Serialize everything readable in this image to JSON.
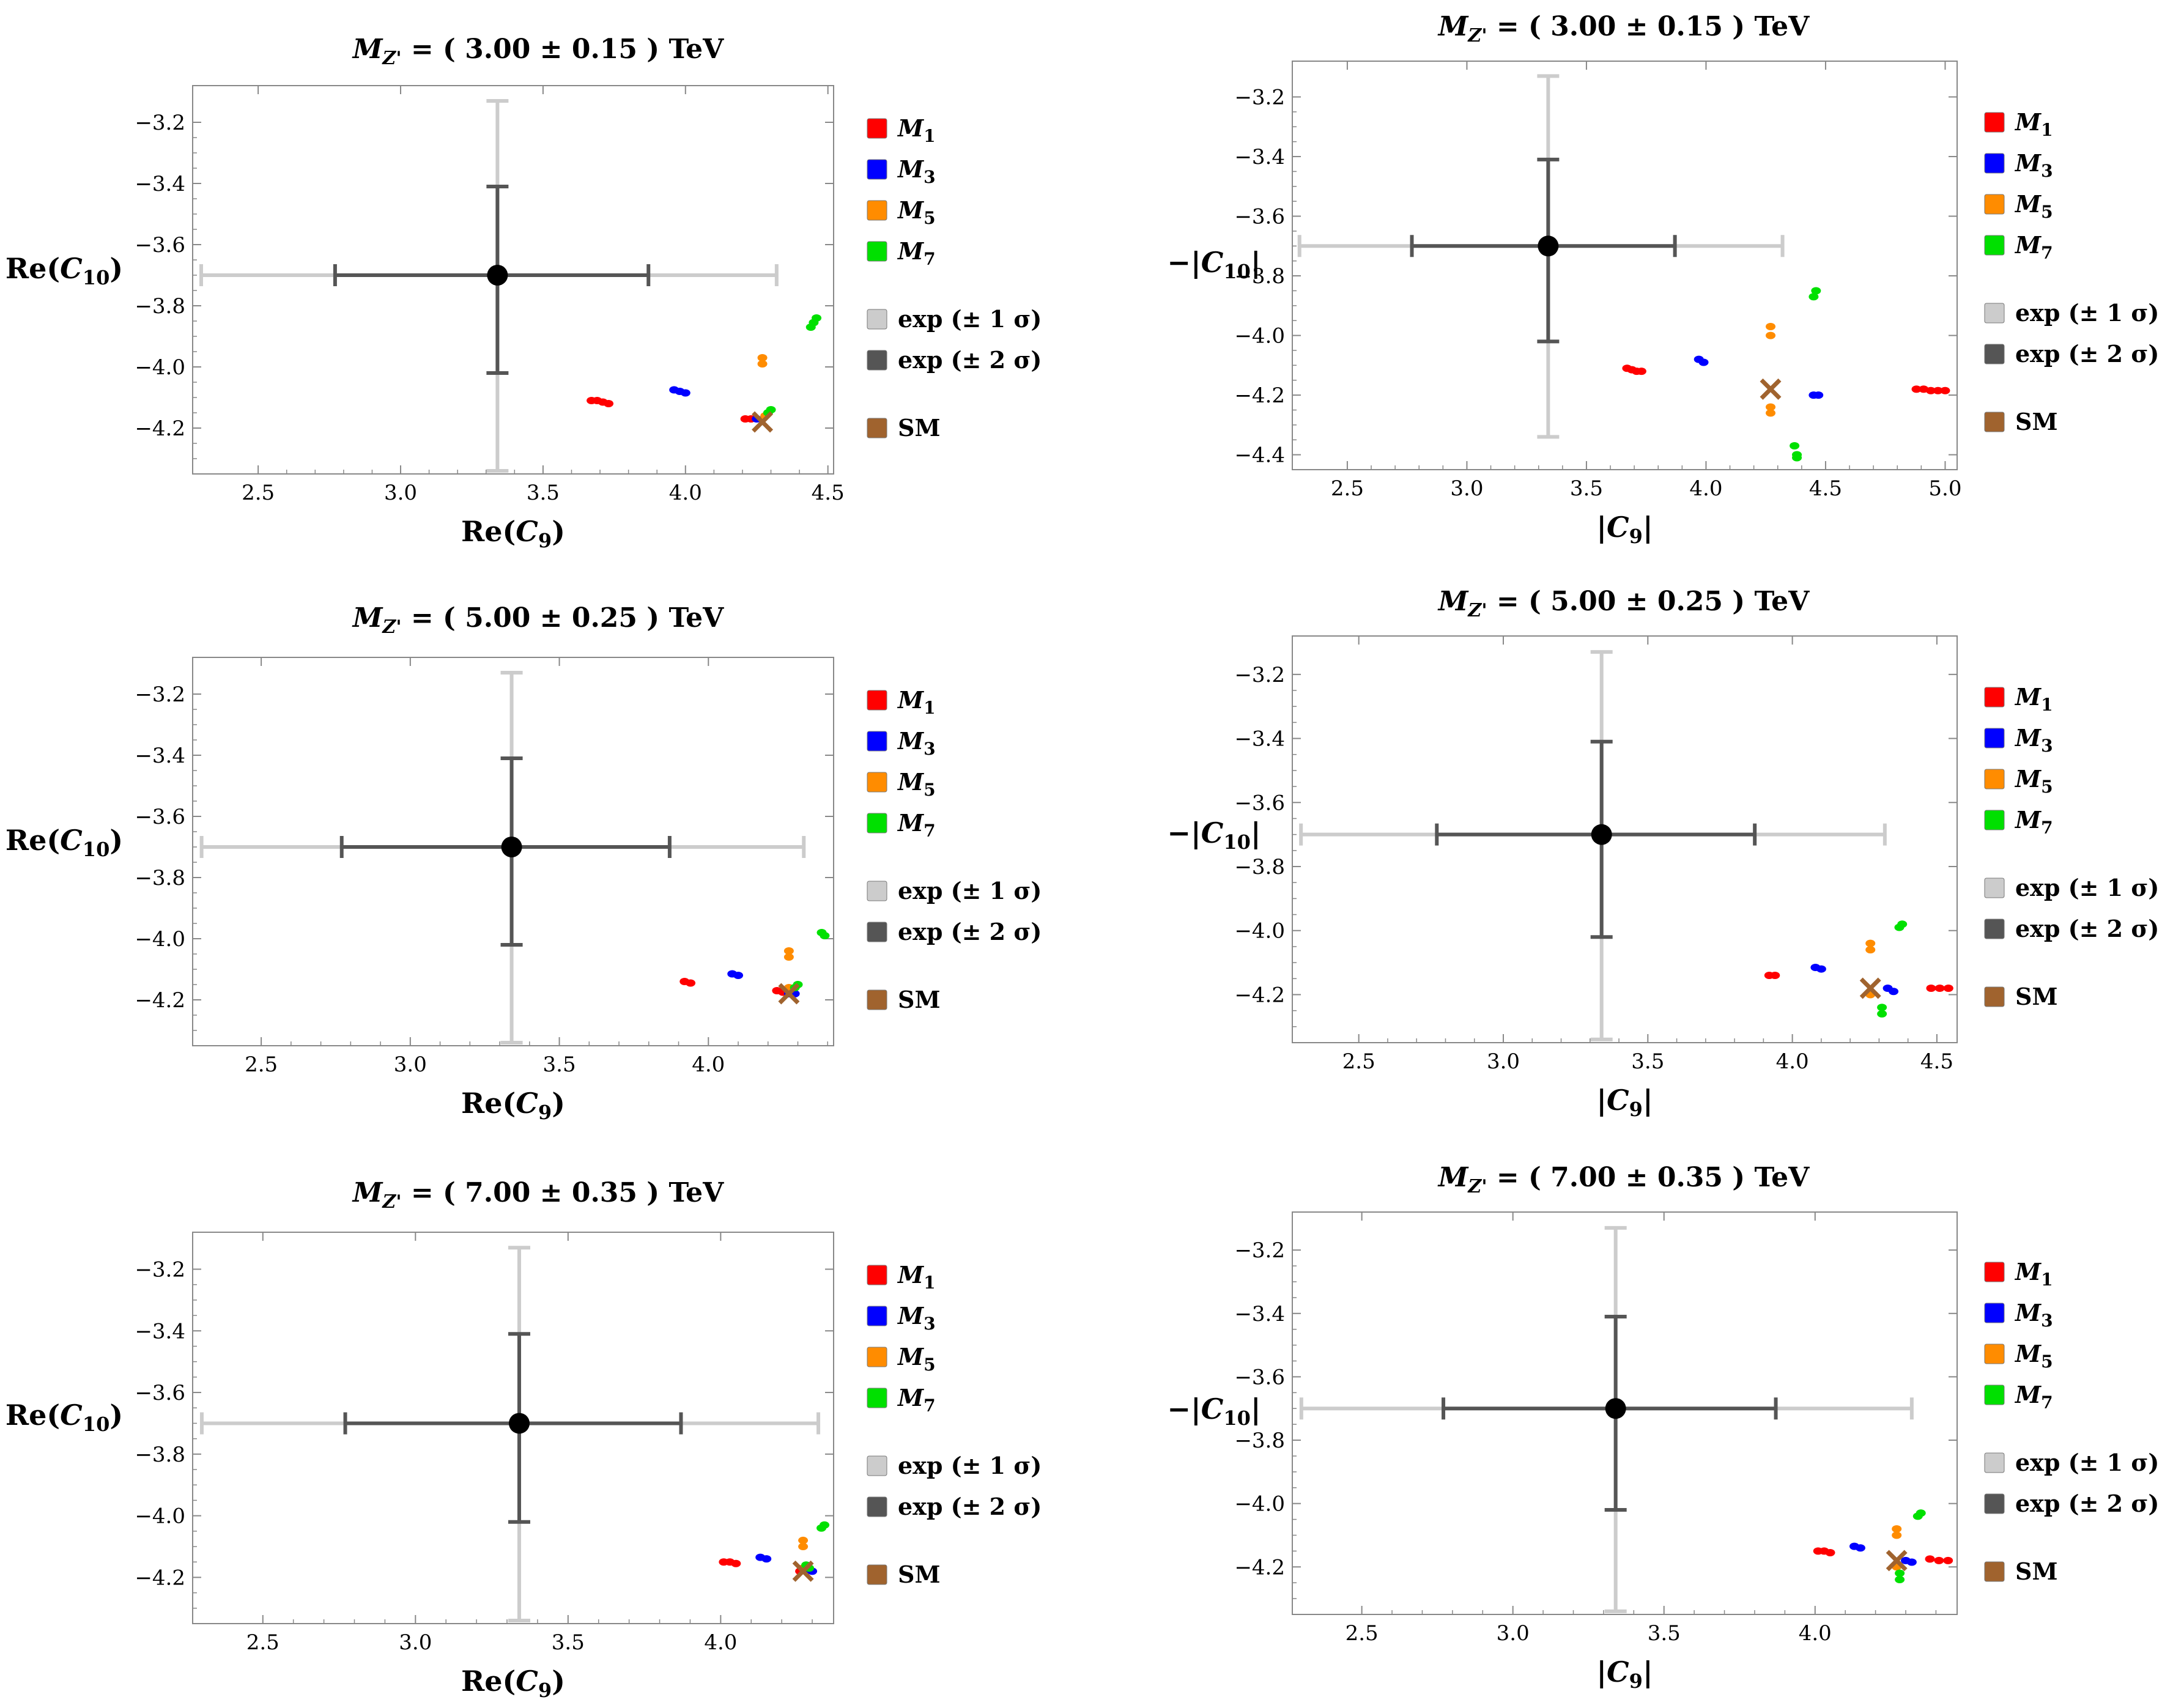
{
  "colors": {
    "M1": "#ff0000",
    "M3": "#0000ff",
    "M5": "#ff8c00",
    "M7": "#00e000",
    "exp1": "#cccccc",
    "exp2": "#555555",
    "SM": "#a0632e",
    "frame": "#888888",
    "bestfit": "#000000"
  },
  "legend": [
    {
      "key": "M1",
      "label": "M",
      "sub": "1",
      "italic": true
    },
    {
      "key": "M3",
      "label": "M",
      "sub": "3",
      "italic": true
    },
    {
      "key": "M5",
      "label": "M",
      "sub": "5",
      "italic": true
    },
    {
      "key": "M7",
      "label": "M",
      "sub": "7",
      "italic": true
    },
    {
      "key": "exp1",
      "label": "exp (± 1 σ)",
      "sub": "",
      "italic": false
    },
    {
      "key": "exp2",
      "label": "exp (± 2 σ)",
      "sub": "",
      "italic": false
    },
    {
      "key": "SM",
      "label": "SM",
      "sub": "",
      "italic": false
    }
  ],
  "chart_data": [
    {
      "type": "scatter",
      "title": "M_Z' = ( 3.00 ± 0.15 ) TeV",
      "title_mass": "( 3.00 ± 0.15 ) TeV",
      "xlabel": "Re(C9)",
      "ylabel": "Re(C10)",
      "xlim": [
        2.27,
        4.52
      ],
      "ylim": [
        -4.35,
        -3.08
      ],
      "xticks": [
        "2.5",
        "3.0",
        "3.5",
        "4.0",
        "4.5"
      ],
      "yticks": [
        "-3.2",
        "-3.4",
        "-3.6",
        "-3.8",
        "-4.0",
        "-4.2"
      ],
      "exp": {
        "center": [
          3.34,
          -3.7
        ],
        "x1": [
          2.3,
          4.32
        ],
        "x2": [
          2.77,
          3.87
        ],
        "y1": [
          -4.34,
          -3.13
        ],
        "y2": [
          -4.02,
          -3.41
        ]
      },
      "sm": [
        4.27,
        -4.18
      ],
      "series": [
        {
          "name": "M1",
          "points": [
            [
              3.67,
              -4.11
            ],
            [
              3.69,
              -4.11
            ],
            [
              3.71,
              -4.115
            ],
            [
              3.73,
              -4.12
            ],
            [
              4.21,
              -4.17
            ],
            [
              4.23,
              -4.17
            ]
          ]
        },
        {
          "name": "M3",
          "points": [
            [
              3.96,
              -4.075
            ],
            [
              3.98,
              -4.08
            ],
            [
              4.0,
              -4.085
            ],
            [
              4.25,
              -4.17
            ]
          ]
        },
        {
          "name": "M5",
          "points": [
            [
              4.27,
              -3.97
            ],
            [
              4.27,
              -3.99
            ],
            [
              4.28,
              -4.16
            ]
          ]
        },
        {
          "name": "M7",
          "points": [
            [
              4.44,
              -3.87
            ],
            [
              4.45,
              -3.855
            ],
            [
              4.46,
              -3.84
            ],
            [
              4.29,
              -4.15
            ],
            [
              4.3,
              -4.14
            ]
          ]
        }
      ]
    },
    {
      "type": "scatter",
      "title": "M_Z' = ( 3.00 ± 0.15 ) TeV",
      "title_mass": "( 3.00 ± 0.15 ) TeV",
      "xlabel": "|C9|",
      "ylabel": "−|C10|",
      "xlim": [
        2.27,
        5.05
      ],
      "ylim": [
        -4.45,
        -3.08
      ],
      "xticks": [
        "2.5",
        "3.0",
        "3.5",
        "4.0",
        "4.5",
        "5.0"
      ],
      "yticks": [
        "-3.2",
        "-3.4",
        "-3.6",
        "-3.8",
        "-4.0",
        "-4.2",
        "-4.4"
      ],
      "exp": {
        "center": [
          3.34,
          -3.7
        ],
        "x1": [
          2.3,
          4.32
        ],
        "x2": [
          2.77,
          3.87
        ],
        "y1": [
          -4.34,
          -3.13
        ],
        "y2": [
          -4.02,
          -3.41
        ]
      },
      "sm": [
        4.27,
        -4.18
      ],
      "series": [
        {
          "name": "M1",
          "points": [
            [
              3.67,
              -4.11
            ],
            [
              3.69,
              -4.115
            ],
            [
              3.71,
              -4.12
            ],
            [
              3.73,
              -4.12
            ],
            [
              4.88,
              -4.18
            ],
            [
              4.91,
              -4.18
            ],
            [
              4.94,
              -4.185
            ],
            [
              4.97,
              -4.185
            ],
            [
              5.0,
              -4.185
            ]
          ]
        },
        {
          "name": "M3",
          "points": [
            [
              3.97,
              -4.08
            ],
            [
              3.99,
              -4.09
            ],
            [
              4.45,
              -4.2
            ],
            [
              4.47,
              -4.2
            ]
          ]
        },
        {
          "name": "M5",
          "points": [
            [
              4.27,
              -3.97
            ],
            [
              4.27,
              -4.0
            ],
            [
              4.27,
              -4.24
            ],
            [
              4.27,
              -4.26
            ]
          ]
        },
        {
          "name": "M7",
          "points": [
            [
              4.45,
              -3.87
            ],
            [
              4.46,
              -3.85
            ],
            [
              4.37,
              -4.37
            ],
            [
              4.38,
              -4.4
            ],
            [
              4.38,
              -4.41
            ]
          ]
        }
      ]
    },
    {
      "type": "scatter",
      "title": "M_Z' = ( 5.00 ± 0.25 ) TeV",
      "title_mass": "( 5.00 ± 0.25 ) TeV",
      "xlabel": "Re(C9)",
      "ylabel": "Re(C10)",
      "xlim": [
        2.27,
        4.42
      ],
      "ylim": [
        -4.35,
        -3.08
      ],
      "xticks": [
        "2.5",
        "3.0",
        "3.5",
        "4.0"
      ],
      "yticks": [
        "-3.2",
        "-3.4",
        "-3.6",
        "-3.8",
        "-4.0",
        "-4.2"
      ],
      "exp": {
        "center": [
          3.34,
          -3.7
        ],
        "x1": [
          2.3,
          4.32
        ],
        "x2": [
          2.77,
          3.87
        ],
        "y1": [
          -4.34,
          -3.13
        ],
        "y2": [
          -4.02,
          -3.41
        ]
      },
      "sm": [
        4.27,
        -4.18
      ],
      "series": [
        {
          "name": "M1",
          "points": [
            [
              3.92,
              -4.14
            ],
            [
              3.94,
              -4.145
            ],
            [
              4.23,
              -4.17
            ],
            [
              4.25,
              -4.175
            ]
          ]
        },
        {
          "name": "M3",
          "points": [
            [
              4.08,
              -4.115
            ],
            [
              4.1,
              -4.12
            ],
            [
              4.27,
              -4.18
            ],
            [
              4.29,
              -4.18
            ]
          ]
        },
        {
          "name": "M5",
          "points": [
            [
              4.27,
              -4.04
            ],
            [
              4.27,
              -4.06
            ],
            [
              4.27,
              -4.16
            ]
          ]
        },
        {
          "name": "M7",
          "points": [
            [
              4.38,
              -3.98
            ],
            [
              4.39,
              -3.99
            ],
            [
              4.29,
              -4.16
            ],
            [
              4.3,
              -4.15
            ]
          ]
        }
      ]
    },
    {
      "type": "scatter",
      "title": "M_Z' = ( 5.00 ± 0.25 ) TeV",
      "title_mass": "( 5.00 ± 0.25 ) TeV",
      "xlabel": "|C9|",
      "ylabel": "−|C10|",
      "xlim": [
        2.27,
        4.57
      ],
      "ylim": [
        -4.35,
        -3.08
      ],
      "xticks": [
        "2.5",
        "3.0",
        "3.5",
        "4.0",
        "4.5"
      ],
      "yticks": [
        "-3.2",
        "-3.4",
        "-3.6",
        "-3.8",
        "-4.0",
        "-4.2"
      ],
      "exp": {
        "center": [
          3.34,
          -3.7
        ],
        "x1": [
          2.3,
          4.32
        ],
        "x2": [
          2.77,
          3.87
        ],
        "y1": [
          -4.34,
          -3.13
        ],
        "y2": [
          -4.02,
          -3.41
        ]
      },
      "sm": [
        4.27,
        -4.18
      ],
      "series": [
        {
          "name": "M1",
          "points": [
            [
              3.92,
              -4.14
            ],
            [
              3.94,
              -4.14
            ],
            [
              4.48,
              -4.18
            ],
            [
              4.51,
              -4.18
            ],
            [
              4.54,
              -4.18
            ]
          ]
        },
        {
          "name": "M3",
          "points": [
            [
              4.08,
              -4.115
            ],
            [
              4.1,
              -4.12
            ],
            [
              4.33,
              -4.18
            ],
            [
              4.35,
              -4.19
            ]
          ]
        },
        {
          "name": "M5",
          "points": [
            [
              4.27,
              -4.04
            ],
            [
              4.27,
              -4.06
            ],
            [
              4.27,
              -4.2
            ]
          ]
        },
        {
          "name": "M7",
          "points": [
            [
              4.38,
              -3.98
            ],
            [
              4.37,
              -3.99
            ],
            [
              4.31,
              -4.24
            ],
            [
              4.31,
              -4.26
            ]
          ]
        }
      ]
    },
    {
      "type": "scatter",
      "title": "M_Z' = ( 7.00 ± 0.35 ) TeV",
      "title_mass": "( 7.00 ± 0.35 ) TeV",
      "xlabel": "Re(C9)",
      "ylabel": "Re(C10)",
      "xlim": [
        2.27,
        4.37
      ],
      "ylim": [
        -4.35,
        -3.08
      ],
      "xticks": [
        "2.5",
        "3.0",
        "3.5",
        "4.0"
      ],
      "yticks": [
        "-3.2",
        "-3.4",
        "-3.6",
        "-3.8",
        "-4.0",
        "-4.2"
      ],
      "exp": {
        "center": [
          3.34,
          -3.7
        ],
        "x1": [
          2.3,
          4.32
        ],
        "x2": [
          2.77,
          3.87
        ],
        "y1": [
          -4.34,
          -3.13
        ],
        "y2": [
          -4.02,
          -3.41
        ]
      },
      "sm": [
        4.27,
        -4.18
      ],
      "series": [
        {
          "name": "M1",
          "points": [
            [
              4.01,
              -4.15
            ],
            [
              4.03,
              -4.15
            ],
            [
              4.05,
              -4.155
            ],
            [
              4.26,
              -4.18
            ]
          ]
        },
        {
          "name": "M3",
          "points": [
            [
              4.13,
              -4.135
            ],
            [
              4.15,
              -4.14
            ],
            [
              4.28,
              -4.18
            ],
            [
              4.3,
              -4.18
            ]
          ]
        },
        {
          "name": "M5",
          "points": [
            [
              4.27,
              -4.08
            ],
            [
              4.27,
              -4.1
            ],
            [
              4.27,
              -4.17
            ]
          ]
        },
        {
          "name": "M7",
          "points": [
            [
              4.33,
              -4.04
            ],
            [
              4.34,
              -4.03
            ],
            [
              4.28,
              -4.16
            ],
            [
              4.29,
              -4.17
            ]
          ]
        }
      ]
    },
    {
      "type": "scatter",
      "title": "M_Z' = ( 7.00 ± 0.35 ) TeV",
      "title_mass": "( 7.00 ± 0.35 ) TeV",
      "xlabel": "|C9|",
      "ylabel": "−|C10|",
      "xlim": [
        2.27,
        4.47
      ],
      "ylim": [
        -4.35,
        -3.08
      ],
      "xticks": [
        "2.5",
        "3.0",
        "3.5",
        "4.0"
      ],
      "yticks": [
        "-3.2",
        "-3.4",
        "-3.6",
        "-3.8",
        "-4.0",
        "-4.2"
      ],
      "exp": {
        "center": [
          3.34,
          -3.7
        ],
        "x1": [
          2.3,
          4.32
        ],
        "x2": [
          2.77,
          3.87
        ],
        "y1": [
          -4.34,
          -3.13
        ],
        "y2": [
          -4.02,
          -3.41
        ]
      },
      "sm": [
        4.27,
        -4.18
      ],
      "series": [
        {
          "name": "M1",
          "points": [
            [
              4.01,
              -4.15
            ],
            [
              4.03,
              -4.15
            ],
            [
              4.05,
              -4.155
            ],
            [
              4.38,
              -4.175
            ],
            [
              4.41,
              -4.18
            ],
            [
              4.44,
              -4.18
            ]
          ]
        },
        {
          "name": "M3",
          "points": [
            [
              4.13,
              -4.135
            ],
            [
              4.15,
              -4.14
            ],
            [
              4.3,
              -4.18
            ],
            [
              4.32,
              -4.185
            ]
          ]
        },
        {
          "name": "M5",
          "points": [
            [
              4.27,
              -4.08
            ],
            [
              4.27,
              -4.1
            ],
            [
              4.27,
              -4.2
            ]
          ]
        },
        {
          "name": "M7",
          "points": [
            [
              4.34,
              -4.04
            ],
            [
              4.35,
              -4.03
            ],
            [
              4.28,
              -4.22
            ],
            [
              4.28,
              -4.24
            ]
          ]
        }
      ]
    }
  ]
}
